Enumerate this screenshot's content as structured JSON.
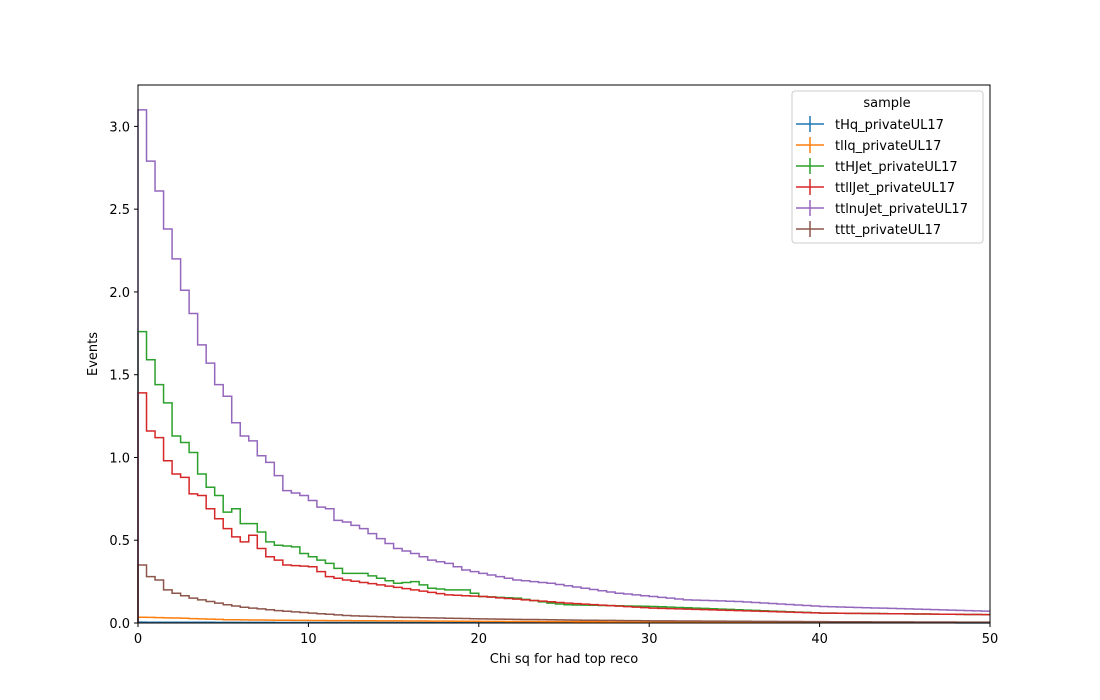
{
  "chart_data": {
    "type": "line",
    "style": "step-histogram",
    "xlabel": "Chi sq for had top reco",
    "ylabel": "Events",
    "xlim": [
      0,
      50
    ],
    "ylim": [
      0,
      3.25
    ],
    "xticks": [
      0,
      10,
      20,
      30,
      40,
      50
    ],
    "yticks": [
      0.0,
      0.5,
      1.0,
      1.5,
      2.0,
      2.5,
      3.0
    ],
    "xtick_labels": [
      "0",
      "10",
      "20",
      "30",
      "40",
      "50"
    ],
    "ytick_labels": [
      "0.0",
      "0.5",
      "1.0",
      "1.5",
      "2.0",
      "2.5",
      "3.0"
    ],
    "bin_width": 0.5,
    "grid": false,
    "legend": {
      "title": "sample",
      "position": "top-right"
    },
    "series": [
      {
        "name": "tHq_privateUL17",
        "color": "#1f77b4",
        "anchors": [
          [
            0,
            0.005
          ],
          [
            10,
            0.003
          ],
          [
            50,
            0.001
          ]
        ]
      },
      {
        "name": "tllq_privateUL17",
        "color": "#ff7f0e",
        "anchors": [
          [
            0,
            0.035
          ],
          [
            2,
            0.03
          ],
          [
            5,
            0.02
          ],
          [
            10,
            0.015
          ],
          [
            20,
            0.01
          ],
          [
            30,
            0.006
          ],
          [
            50,
            0.003
          ]
        ]
      },
      {
        "name": "ttHJet_privateUL17",
        "color": "#2ca02c",
        "anchors": [
          [
            0,
            1.76
          ],
          [
            0.5,
            1.59
          ],
          [
            1,
            1.44
          ],
          [
            1.5,
            1.33
          ],
          [
            2,
            1.13
          ],
          [
            2.5,
            1.09
          ],
          [
            3,
            1.03
          ],
          [
            3.5,
            0.9
          ],
          [
            4,
            0.82
          ],
          [
            4.5,
            0.77
          ],
          [
            5,
            0.67
          ],
          [
            5.5,
            0.69
          ],
          [
            6,
            0.6
          ],
          [
            6.5,
            0.6
          ],
          [
            7,
            0.55
          ],
          [
            7.5,
            0.49
          ],
          [
            8,
            0.47
          ],
          [
            9,
            0.46
          ],
          [
            9.5,
            0.42
          ],
          [
            10,
            0.4
          ],
          [
            11,
            0.36
          ],
          [
            12,
            0.3
          ],
          [
            13,
            0.3
          ],
          [
            15,
            0.24
          ],
          [
            16,
            0.25
          ],
          [
            17,
            0.21
          ],
          [
            18,
            0.2
          ],
          [
            19,
            0.2
          ],
          [
            20,
            0.16
          ],
          [
            22,
            0.15
          ],
          [
            24,
            0.12
          ],
          [
            25,
            0.11
          ],
          [
            30,
            0.1
          ],
          [
            35,
            0.08
          ],
          [
            40,
            0.06
          ],
          [
            50,
            0.05
          ]
        ]
      },
      {
        "name": "ttllJet_privateUL17",
        "color": "#d62728",
        "anchors": [
          [
            0,
            1.39
          ],
          [
            0.5,
            1.16
          ],
          [
            1,
            1.12
          ],
          [
            1.5,
            0.98
          ],
          [
            2,
            0.9
          ],
          [
            2.5,
            0.88
          ],
          [
            3,
            0.78
          ],
          [
            3.5,
            0.77
          ],
          [
            4,
            0.69
          ],
          [
            4.5,
            0.63
          ],
          [
            5,
            0.57
          ],
          [
            5.5,
            0.52
          ],
          [
            6,
            0.49
          ],
          [
            6.5,
            0.53
          ],
          [
            7,
            0.45
          ],
          [
            7.5,
            0.4
          ],
          [
            8,
            0.38
          ],
          [
            8.5,
            0.35
          ],
          [
            10,
            0.34
          ],
          [
            11,
            0.28
          ],
          [
            12,
            0.26
          ],
          [
            14,
            0.23
          ],
          [
            16,
            0.2
          ],
          [
            18,
            0.17
          ],
          [
            20,
            0.16
          ],
          [
            25,
            0.12
          ],
          [
            30,
            0.09
          ],
          [
            35,
            0.075
          ],
          [
            40,
            0.06
          ],
          [
            45,
            0.055
          ],
          [
            50,
            0.05
          ]
        ]
      },
      {
        "name": "ttlnuJet_privateUL17",
        "color": "#9467bd",
        "anchors": [
          [
            0,
            3.1
          ],
          [
            0.5,
            2.79
          ],
          [
            1,
            2.61
          ],
          [
            1.5,
            2.38
          ],
          [
            2,
            2.2
          ],
          [
            2.5,
            2.01
          ],
          [
            3,
            1.87
          ],
          [
            3.5,
            1.68
          ],
          [
            4,
            1.57
          ],
          [
            4.5,
            1.44
          ],
          [
            5,
            1.37
          ],
          [
            5.5,
            1.21
          ],
          [
            6,
            1.13
          ],
          [
            6.5,
            1.1
          ],
          [
            7,
            1.01
          ],
          [
            7.5,
            0.97
          ],
          [
            8,
            0.89
          ],
          [
            8.5,
            0.8
          ],
          [
            9.5,
            0.77
          ],
          [
            10,
            0.74
          ],
          [
            10.5,
            0.7
          ],
          [
            11,
            0.69
          ],
          [
            11.5,
            0.62
          ],
          [
            12,
            0.61
          ],
          [
            13,
            0.57
          ],
          [
            14,
            0.51
          ],
          [
            15,
            0.45
          ],
          [
            16,
            0.42
          ],
          [
            17,
            0.38
          ],
          [
            18,
            0.36
          ],
          [
            19,
            0.32
          ],
          [
            20,
            0.3
          ],
          [
            22,
            0.26
          ],
          [
            24,
            0.24
          ],
          [
            26,
            0.21
          ],
          [
            28,
            0.18
          ],
          [
            30,
            0.16
          ],
          [
            32,
            0.14
          ],
          [
            35,
            0.13
          ],
          [
            40,
            0.1
          ],
          [
            45,
            0.085
          ],
          [
            50,
            0.07
          ]
        ]
      },
      {
        "name": "tttt_privateUL17",
        "color": "#8c564b",
        "anchors": [
          [
            0,
            0.35
          ],
          [
            0.5,
            0.28
          ],
          [
            1,
            0.26
          ],
          [
            1.5,
            0.2
          ],
          [
            2,
            0.18
          ],
          [
            3,
            0.15
          ],
          [
            4,
            0.13
          ],
          [
            5,
            0.11
          ],
          [
            6,
            0.095
          ],
          [
            8,
            0.075
          ],
          [
            10,
            0.06
          ],
          [
            12,
            0.045
          ],
          [
            15,
            0.035
          ],
          [
            20,
            0.025
          ],
          [
            25,
            0.018
          ],
          [
            30,
            0.013
          ],
          [
            40,
            0.008
          ],
          [
            50,
            0.005
          ]
        ]
      }
    ]
  }
}
